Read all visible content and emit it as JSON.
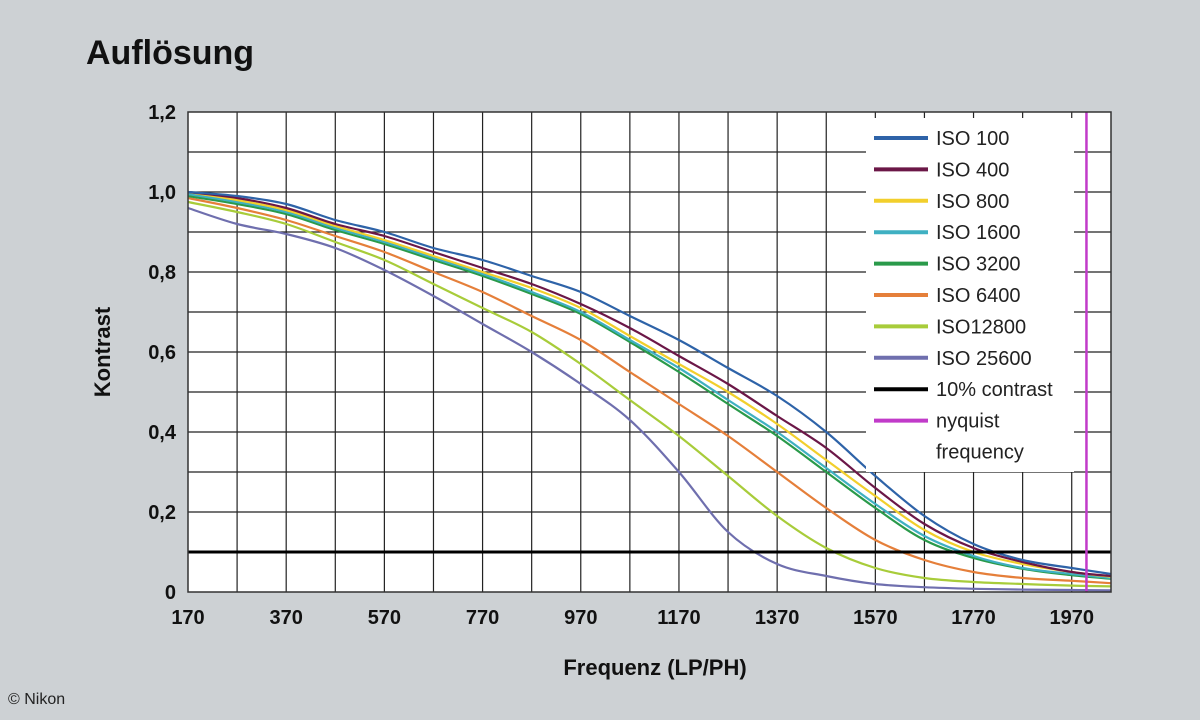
{
  "title": "Auflösung",
  "credit": "© Nikon",
  "chart_data": {
    "type": "line",
    "xlabel": "Frequenz (LP/PH)",
    "ylabel": "Kontrast",
    "xlim": [
      170,
      2050
    ],
    "ylim": [
      0,
      1.2
    ],
    "x_ticks": [
      170,
      370,
      570,
      770,
      970,
      1170,
      1370,
      1570,
      1770,
      1970
    ],
    "x_tick_labels": [
      "170",
      "370",
      "570",
      "770",
      "970",
      "1170",
      "1370",
      "1570",
      "1770",
      "1970"
    ],
    "y_ticks": [
      0,
      0.2,
      0.4,
      0.6,
      0.8,
      1.0,
      1.2
    ],
    "y_tick_labels": [
      "0",
      "0,2",
      "0,4",
      "0,6",
      "0,8",
      "1,0",
      "1,2"
    ],
    "grid": true,
    "legend_position": "top-right",
    "x": [
      170,
      270,
      370,
      470,
      570,
      670,
      770,
      870,
      970,
      1070,
      1170,
      1270,
      1370,
      1470,
      1570,
      1670,
      1770,
      1870,
      1970,
      2050
    ],
    "series": [
      {
        "name": "ISO 100",
        "color": "#2e63a8",
        "values": [
          1.0,
          0.99,
          0.97,
          0.93,
          0.9,
          0.86,
          0.83,
          0.79,
          0.75,
          0.69,
          0.63,
          0.56,
          0.49,
          0.4,
          0.29,
          0.19,
          0.12,
          0.08,
          0.06,
          0.045
        ]
      },
      {
        "name": "ISO 400",
        "color": "#6b1747",
        "values": [
          1.0,
          0.985,
          0.96,
          0.92,
          0.89,
          0.85,
          0.81,
          0.77,
          0.72,
          0.66,
          0.59,
          0.52,
          0.44,
          0.36,
          0.26,
          0.17,
          0.11,
          0.075,
          0.05,
          0.04
        ]
      },
      {
        "name": "ISO 800",
        "color": "#f2cf2c",
        "values": [
          1.0,
          0.98,
          0.955,
          0.915,
          0.88,
          0.84,
          0.8,
          0.76,
          0.71,
          0.64,
          0.57,
          0.5,
          0.42,
          0.33,
          0.24,
          0.155,
          0.1,
          0.07,
          0.05,
          0.038
        ]
      },
      {
        "name": "ISO 1600",
        "color": "#3fb0c2",
        "values": [
          0.995,
          0.975,
          0.95,
          0.91,
          0.875,
          0.835,
          0.795,
          0.75,
          0.7,
          0.63,
          0.56,
          0.48,
          0.4,
          0.31,
          0.22,
          0.14,
          0.09,
          0.06,
          0.045,
          0.035
        ]
      },
      {
        "name": "ISO 3200",
        "color": "#2a9a4a",
        "values": [
          0.99,
          0.97,
          0.945,
          0.905,
          0.87,
          0.83,
          0.79,
          0.745,
          0.695,
          0.625,
          0.55,
          0.47,
          0.39,
          0.3,
          0.21,
          0.13,
          0.085,
          0.058,
          0.042,
          0.033
        ]
      },
      {
        "name": "ISO 6400",
        "color": "#e57f3a",
        "values": [
          0.985,
          0.96,
          0.93,
          0.89,
          0.85,
          0.8,
          0.75,
          0.69,
          0.63,
          0.55,
          0.47,
          0.39,
          0.3,
          0.21,
          0.13,
          0.08,
          0.05,
          0.035,
          0.028,
          0.022
        ]
      },
      {
        "name": "ISO12800",
        "color": "#a8cc3a",
        "values": [
          0.975,
          0.95,
          0.92,
          0.875,
          0.83,
          0.77,
          0.71,
          0.65,
          0.57,
          0.48,
          0.39,
          0.29,
          0.19,
          0.11,
          0.06,
          0.035,
          0.025,
          0.02,
          0.016,
          0.014
        ]
      },
      {
        "name": "ISO 25600",
        "color": "#6f6fae",
        "values": [
          0.96,
          0.92,
          0.895,
          0.86,
          0.805,
          0.74,
          0.67,
          0.6,
          0.52,
          0.43,
          0.3,
          0.15,
          0.07,
          0.04,
          0.02,
          0.012,
          0.008,
          0.006,
          0.005,
          0.004
        ]
      }
    ],
    "reference_lines": [
      {
        "name": "10% contrast",
        "orientation": "horizontal",
        "value": 0.1,
        "color": "#000000"
      },
      {
        "name": "nyquist frequency",
        "orientation": "vertical",
        "value": 2000,
        "color": "#c13bc9"
      }
    ],
    "legend": [
      {
        "label": "ISO 100",
        "color": "#2e63a8"
      },
      {
        "label": "ISO 400",
        "color": "#6b1747"
      },
      {
        "label": "ISO 800",
        "color": "#f2cf2c"
      },
      {
        "label": "ISO 1600",
        "color": "#3fb0c2"
      },
      {
        "label": "ISO 3200",
        "color": "#2a9a4a"
      },
      {
        "label": "ISO 6400",
        "color": "#e57f3a"
      },
      {
        "label": "ISO12800",
        "color": "#a8cc3a"
      },
      {
        "label": "ISO 25600",
        "color": "#6f6fae"
      },
      {
        "label": "10% contrast",
        "color": "#000000"
      },
      {
        "label": "nyquist",
        "label2": "frequency",
        "color": "#c13bc9"
      }
    ]
  }
}
